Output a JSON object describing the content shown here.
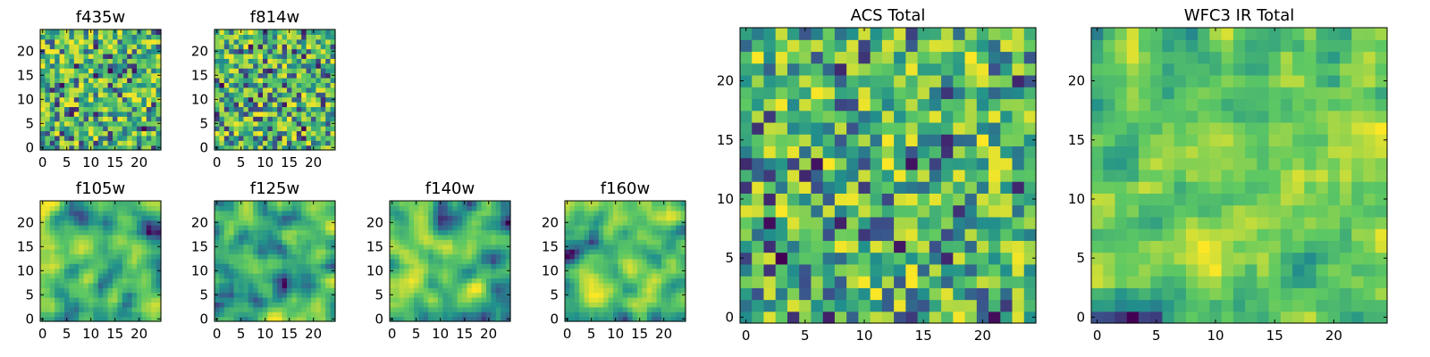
{
  "chart_data": [
    {
      "type": "heatmap",
      "title": "f435w",
      "grid": [
        25,
        25
      ],
      "xticks": [
        "0",
        "5",
        "10",
        "15",
        "20"
      ],
      "yticks": [
        "0",
        "5",
        "10",
        "15",
        "20"
      ],
      "colormap": "viridis",
      "seed": 11,
      "smooth": 0
    },
    {
      "type": "heatmap",
      "title": "f814w",
      "grid": [
        25,
        25
      ],
      "xticks": [
        "0",
        "5",
        "10",
        "15",
        "20"
      ],
      "yticks": [
        "0",
        "5",
        "10",
        "15",
        "20"
      ],
      "colormap": "viridis",
      "seed": 23,
      "smooth": 0
    },
    {
      "type": "heatmap",
      "title": "f105w",
      "grid": [
        25,
        25
      ],
      "xticks": [
        "0",
        "5",
        "10",
        "15",
        "20"
      ],
      "yticks": [
        "0",
        "5",
        "10",
        "15",
        "20"
      ],
      "colormap": "viridis",
      "seed": 37,
      "smooth": 2
    },
    {
      "type": "heatmap",
      "title": "f125w",
      "grid": [
        25,
        25
      ],
      "xticks": [
        "0",
        "5",
        "10",
        "15",
        "20"
      ],
      "yticks": [
        "0",
        "5",
        "10",
        "15",
        "20"
      ],
      "colormap": "viridis",
      "seed": 41,
      "smooth": 2
    },
    {
      "type": "heatmap",
      "title": "f140w",
      "grid": [
        25,
        25
      ],
      "xticks": [
        "0",
        "5",
        "10",
        "15",
        "20"
      ],
      "yticks": [
        "0",
        "5",
        "10",
        "15",
        "20"
      ],
      "colormap": "viridis",
      "seed": 53,
      "smooth": 2
    },
    {
      "type": "heatmap",
      "title": "f160w",
      "grid": [
        25,
        25
      ],
      "xticks": [
        "0",
        "5",
        "10",
        "15",
        "20"
      ],
      "yticks": [
        "0",
        "5",
        "10",
        "15",
        "20"
      ],
      "colormap": "viridis",
      "seed": 67,
      "smooth": 2
    },
    {
      "type": "heatmap",
      "title": "ACS Total",
      "grid": [
        25,
        25
      ],
      "xticks": [
        "0",
        "5",
        "10",
        "15",
        "20"
      ],
      "yticks": [
        "0",
        "5",
        "10",
        "15",
        "20"
      ],
      "colormap": "viridis",
      "seed": 79,
      "smooth": 0
    },
    {
      "type": "heatmap",
      "title": "WFC3 IR Total",
      "grid": [
        25,
        25
      ],
      "xticks": [
        "0",
        "5",
        "10",
        "15",
        "20"
      ],
      "yticks": [
        "0",
        "5",
        "10",
        "15",
        "20"
      ],
      "colormap": "viridis",
      "seed": 97,
      "smooth": 1
    }
  ],
  "colors": {
    "viridis": [
      "#440154",
      "#3b528b",
      "#21918c",
      "#5ec962",
      "#fde725"
    ]
  }
}
